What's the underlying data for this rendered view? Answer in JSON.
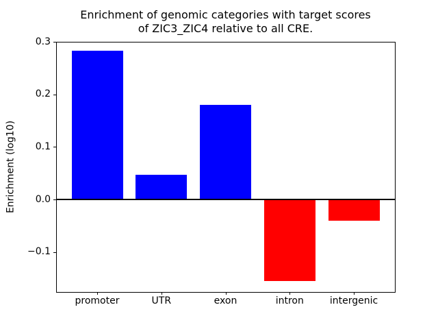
{
  "chart_data": {
    "type": "bar",
    "title": "Enrichment of genomic categories with target scores\nof ZIC3_ZIC4 relative to all CRE.",
    "xlabel": "",
    "ylabel": "Enrichment (log10)",
    "categories": [
      "promoter",
      "UTR",
      "exon",
      "intron",
      "intergenic"
    ],
    "values": [
      0.283,
      0.047,
      0.18,
      -0.155,
      -0.04
    ],
    "bar_colors": [
      "#0000ff",
      "#0000ff",
      "#0000ff",
      "#ff0000",
      "#ff0000"
    ],
    "positive_color": "#0000ff",
    "negative_color": "#ff0000",
    "ylim": [
      -0.176,
      0.3
    ],
    "xlim": [
      -0.64,
      4.64
    ],
    "yticks": [
      0.3,
      0.2,
      0.1,
      0.0,
      -0.1
    ],
    "ytick_labels": [
      "0.3",
      "0.2",
      "0.1",
      "0.0",
      "−0.1"
    ],
    "bar_width": 0.8,
    "grid": false,
    "legend": null,
    "zero_line": true,
    "background_color": "#ffffff",
    "spine_color": "#000000"
  }
}
